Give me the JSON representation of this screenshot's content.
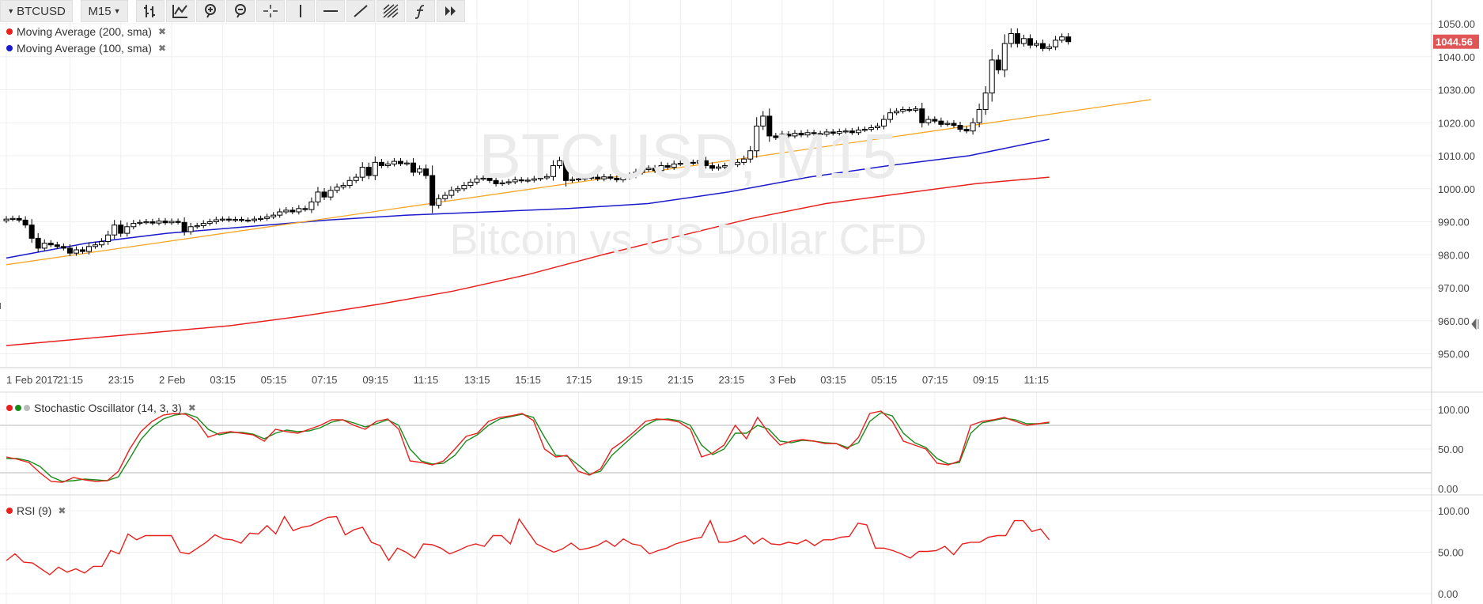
{
  "toolbar": {
    "symbol": "BTCUSD",
    "timeframe": "M15",
    "tools": [
      "bar-type-icon",
      "indicators-icon",
      "zoom-in-icon",
      "zoom-out-icon",
      "crosshair-icon",
      "vertical-line-icon",
      "horizontal-line-icon",
      "trend-line-icon",
      "fibonacci-icon",
      "function-icon",
      "forward-icon"
    ]
  },
  "watermark": {
    "symbol": "BTCUSD, M15",
    "description": "Bitcoin vs US Dollar CFD"
  },
  "legends": {
    "ma200": "Moving Average (200, sma)",
    "ma100": "Moving Average (100, sma)",
    "stoch": "Stochastic Oscillator (14, 3, 3)",
    "rsi": "RSI (9)"
  },
  "last_price": "1044.56",
  "colors": {
    "up": "#ffffff",
    "down": "#000000",
    "ma200": "#e8201e",
    "ma100": "#1a1acc",
    "trendline": "#f5a623",
    "stoch_k": "#e8201e",
    "stoch_d": "#1a8a1a",
    "rsi": "#e8201e",
    "price_tag": "#e05555"
  },
  "chart_data": [
    {
      "type": "candlestick",
      "title": "BTCUSD, M15",
      "xlabel": "",
      "ylabel": "",
      "ylim": [
        945,
        1052
      ],
      "y_ticks": [
        950,
        960,
        970,
        980,
        990,
        1000,
        1010,
        1020,
        1030,
        1040,
        1050
      ],
      "y_tick_labels": [
        "950.00",
        "960.00",
        "970.00",
        "980.00",
        "990.00",
        "1000.00",
        "1010.00",
        "1020.00",
        "1030.00",
        "1040.00",
        "1050.00"
      ],
      "x_tick_labels": [
        "1 Feb 2017",
        "21:15",
        "23:15",
        "2 Feb",
        "03:15",
        "05:15",
        "07:15",
        "09:15",
        "11:15",
        "13:15",
        "15:15",
        "17:15",
        "19:15",
        "21:15",
        "23:15",
        "3 Feb",
        "03:15",
        "05:15",
        "07:15",
        "09:15",
        "11:15"
      ],
      "x_tick_bars": [
        0,
        10,
        18,
        26,
        34,
        42,
        50,
        58,
        66,
        74,
        82,
        90,
        98,
        106,
        114,
        122,
        130,
        138,
        146,
        154,
        162
      ],
      "x_range": [
        0,
        180
      ],
      "close": [
        990.8,
        991.0,
        990.5,
        989.0,
        985.0,
        982.0,
        983.5,
        983.0,
        982.5,
        982.0,
        980.5,
        981.5,
        981.0,
        982.5,
        983.0,
        984.0,
        986.0,
        989.0,
        986.5,
        988.5,
        989.5,
        989.8,
        990.0,
        989.6,
        990.2,
        989.7,
        990.1,
        989.8,
        987.0,
        988.5,
        988.8,
        989.5,
        990.0,
        990.6,
        990.8,
        990.5,
        990.7,
        990.5,
        990.4,
        990.8,
        991.0,
        991.5,
        992.0,
        993.0,
        993.5,
        993.0,
        994.0,
        993.7,
        996.0,
        999.0,
        997.5,
        999.5,
        1000.5,
        1001.0,
        1002.5,
        1003.5,
        1006.5,
        1004.0,
        1008.0,
        1007.0,
        1007.5,
        1008.3,
        1007.6,
        1007.8,
        1005.0,
        1006.0,
        1004.0,
        995.0,
        997.0,
        998.0,
        999.5,
        1000.0,
        1001.0,
        1002.0,
        1003.0,
        1003.2,
        1002.5,
        1001.5,
        1001.8,
        1002.1,
        1002.7,
        1002.4,
        1002.6,
        1003.0,
        1003.3,
        1003.7,
        1007.0,
        1008.5,
        1002.5,
        1002.8,
        1003.0,
        1003.3,
        1003.5,
        1003.0,
        1003.6,
        1003.2,
        1002.7,
        1003.5,
        1004.0,
        1005.0,
        1005.8,
        1006.2,
        1005.5,
        1007.0,
        1006.5,
        1007.5,
        1007.7,
        1008.0,
        1007.8,
        1008.5,
        1007.0,
        1006.2,
        1006.6,
        1007.0,
        1007.3,
        1008.0,
        1009.0,
        1011.5,
        1019.0,
        1022.0,
        1016.0,
        1015.5,
        1016.5,
        1016.0,
        1016.8,
        1016.3,
        1017.0,
        1016.7,
        1016.5,
        1017.2,
        1016.8,
        1017.3,
        1017.5,
        1017.0,
        1017.8,
        1018.0,
        1018.5,
        1019.0,
        1021.0,
        1023.0,
        1023.5,
        1024.0,
        1023.8,
        1024.2,
        1020.0,
        1021.0,
        1020.5,
        1019.5,
        1019.8,
        1019.2,
        1018.0,
        1017.5,
        1020.0,
        1024.0,
        1029.0,
        1039.0,
        1036.0,
        1044.0,
        1047.0,
        1044.0,
        1045.5,
        1043.5,
        1044.0,
        1042.5,
        1043.0,
        1045.0,
        1046.0,
        1044.56
      ],
      "series": [
        {
          "name": "Moving Average (200, sma)",
          "start": 0,
          "end": 164,
          "values": [
            952.5,
            954.5,
            956.5,
            958.5,
            961.5,
            965.0,
            969.0,
            974.0,
            980.0,
            985.5,
            991.0,
            995.5,
            998.5,
            1001.5,
            1003.5
          ]
        },
        {
          "name": "Moving Average (100, sma)",
          "start": 0,
          "end": 164,
          "values": [
            979.0,
            983.5,
            986.5,
            988.5,
            990.5,
            992.0,
            993.0,
            994.0,
            995.5,
            999.0,
            1003.5,
            1007.0,
            1010.0,
            1015.0
          ]
        },
        {
          "name": "",
          "start": 0,
          "end": 180,
          "values": [
            977.0,
            1027.0
          ]
        }
      ]
    },
    {
      "type": "line",
      "title": "Stochastic Oscillator (14, 3, 3)",
      "ylim": [
        0,
        100
      ],
      "y_ticks": [
        0,
        50,
        100
      ],
      "y_tick_labels": [
        "0.00",
        "50.00",
        "100.00"
      ],
      "levels": [
        20,
        80
      ],
      "series": [
        {
          "name": "%K",
          "values": [
            40,
            37,
            33,
            20,
            9,
            8,
            14,
            11,
            9,
            10,
            22,
            50,
            72,
            85,
            93,
            95,
            94,
            85,
            65,
            70,
            72,
            70,
            68,
            60,
            75,
            72,
            70,
            75,
            80,
            87,
            87,
            80,
            75,
            85,
            88,
            75,
            35,
            33,
            30,
            35,
            50,
            66,
            70,
            85,
            90,
            92,
            95,
            86,
            50,
            40,
            42,
            22,
            17,
            25,
            50,
            60,
            72,
            85,
            88,
            87,
            84,
            75,
            40,
            45,
            55,
            80,
            63,
            90,
            70,
            55,
            60,
            62,
            60,
            57,
            57,
            50,
            65,
            95,
            98,
            85,
            60,
            55,
            50,
            32,
            30,
            35,
            80,
            85,
            87,
            90,
            85,
            80,
            82,
            84
          ]
        },
        {
          "name": "%D",
          "values": [
            38,
            38,
            35,
            28,
            15,
            9,
            10,
            12,
            11,
            10,
            15,
            38,
            62,
            78,
            88,
            93,
            95,
            90,
            75,
            68,
            71,
            71,
            69,
            63,
            70,
            74,
            72,
            73,
            77,
            84,
            87,
            83,
            78,
            82,
            87,
            80,
            50,
            35,
            31,
            32,
            42,
            60,
            68,
            80,
            88,
            91,
            94,
            90,
            65,
            42,
            41,
            30,
            18,
            22,
            42,
            55,
            68,
            80,
            87,
            88,
            86,
            80,
            55,
            43,
            50,
            70,
            70,
            80,
            75,
            60,
            58,
            61,
            60,
            58,
            57,
            52,
            58,
            85,
            96,
            92,
            70,
            58,
            52,
            38,
            31,
            33,
            70,
            83,
            86,
            89,
            87,
            82,
            82,
            83
          ]
        }
      ]
    },
    {
      "type": "line",
      "title": "RSI (9)",
      "ylim": [
        0,
        100
      ],
      "y_ticks": [
        0,
        50,
        100
      ],
      "y_tick_labels": [
        "0.00",
        "50.00",
        "100.00"
      ],
      "series": [
        {
          "name": "RSI (9)",
          "values": [
            40,
            48,
            38,
            37,
            30,
            23,
            32,
            26,
            30,
            25,
            33,
            33,
            52,
            48,
            72,
            65,
            70,
            70,
            70,
            70,
            50,
            48,
            55,
            62,
            71,
            66,
            65,
            61,
            73,
            72,
            82,
            72,
            93,
            76,
            80,
            82,
            87,
            92,
            93,
            71,
            77,
            80,
            62,
            58,
            40,
            55,
            50,
            43,
            60,
            59,
            55,
            48,
            52,
            57,
            60,
            57,
            70,
            70,
            60,
            90,
            75,
            60,
            55,
            50,
            54,
            61,
            53,
            55,
            58,
            64,
            57,
            66,
            60,
            58,
            48,
            52,
            55,
            60,
            63,
            66,
            68,
            88,
            62,
            62,
            65,
            70,
            60,
            67,
            60,
            59,
            62,
            60,
            65,
            58,
            65,
            65,
            68,
            69,
            85,
            83,
            55,
            55,
            52,
            48,
            43,
            51,
            51,
            52,
            57,
            47,
            60,
            62,
            62,
            68,
            70,
            70,
            88,
            88,
            75,
            78,
            65
          ]
        }
      ]
    }
  ]
}
